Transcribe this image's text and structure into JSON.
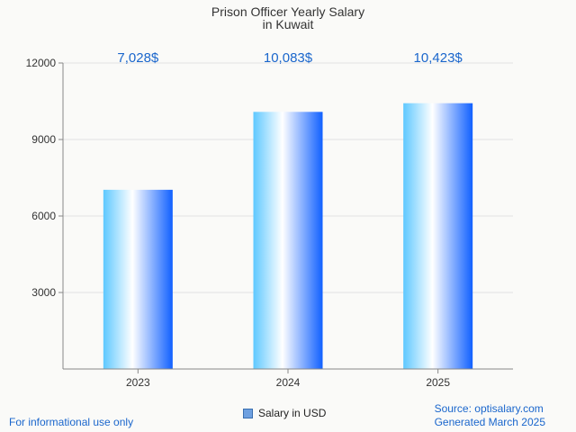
{
  "chart_data": {
    "type": "bar",
    "title": [
      "Prison Officer Yearly Salary",
      "in Kuwait"
    ],
    "categories": [
      "2023",
      "2024",
      "2025"
    ],
    "series": [
      {
        "name": "Salary in USD",
        "values": [
          7028,
          10083,
          10423
        ]
      }
    ],
    "data_labels": [
      "7,028$",
      "10,083$",
      "10,423$"
    ],
    "yticks": [
      "3000",
      "6000",
      "9000",
      "12000"
    ],
    "ylim": [
      0,
      12000
    ],
    "grid": true,
    "legend_position": "bottom-center",
    "colors": {
      "bar_left": "#5ec8ff",
      "bar_mid": "#ffffff",
      "bar_right": "#1060ff",
      "data_label": "#1a66cc",
      "grid": "#e2e2e2",
      "axis": "#888888"
    }
  },
  "legend": {
    "label": "Salary in USD"
  },
  "footer": {
    "left": "For informational use only",
    "source": "Source: optisalary.com",
    "generated": "Generated March 2025"
  }
}
